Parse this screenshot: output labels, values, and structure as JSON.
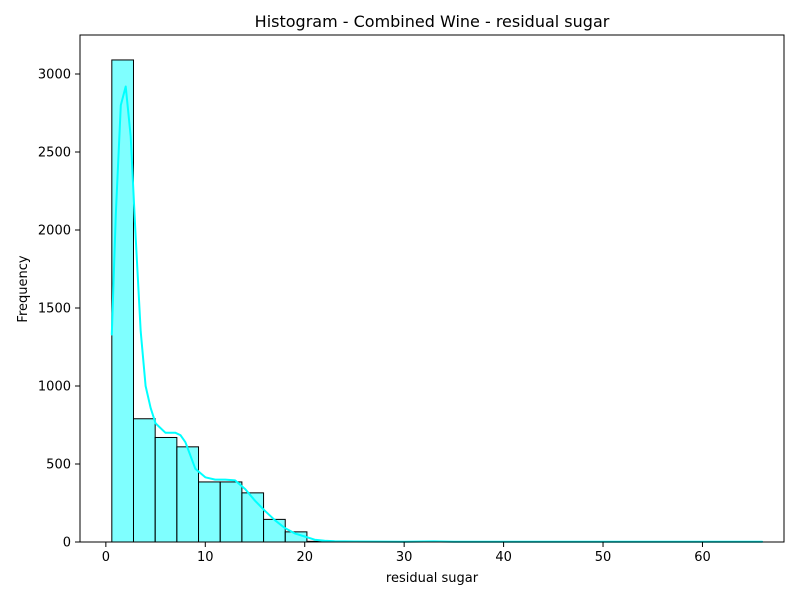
{
  "chart_data": {
    "type": "bar",
    "title": "Histogram - Combined Wine - residual sugar",
    "xlabel": "residual sugar",
    "ylabel": "Frequency",
    "xlim": [
      -2.6,
      68.2
    ],
    "ylim": [
      0,
      3250
    ],
    "xticks": [
      0,
      10,
      20,
      30,
      40,
      50,
      60
    ],
    "yticks": [
      0,
      500,
      1000,
      1500,
      2000,
      2500,
      3000
    ],
    "grid": false,
    "legend": "none",
    "bins": [
      {
        "x0": 0.6,
        "x1": 2.78,
        "count": 3090
      },
      {
        "x0": 2.78,
        "x1": 4.96,
        "count": 790
      },
      {
        "x0": 4.96,
        "x1": 7.14,
        "count": 670
      },
      {
        "x0": 7.14,
        "x1": 9.32,
        "count": 610
      },
      {
        "x0": 9.32,
        "x1": 11.5,
        "count": 385
      },
      {
        "x0": 11.5,
        "x1": 13.68,
        "count": 385
      },
      {
        "x0": 13.68,
        "x1": 15.86,
        "count": 315
      },
      {
        "x0": 15.86,
        "x1": 18.04,
        "count": 145
      },
      {
        "x0": 18.04,
        "x1": 20.22,
        "count": 65
      },
      {
        "x0": 20.22,
        "x1": 22.4,
        "count": 4
      },
      {
        "x0": 22.4,
        "x1": 24.58,
        "count": 1
      },
      {
        "x0": 24.58,
        "x1": 26.76,
        "count": 1
      },
      {
        "x0": 26.76,
        "x1": 28.94,
        "count": 0
      },
      {
        "x0": 28.94,
        "x1": 31.12,
        "count": 1
      },
      {
        "x0": 31.12,
        "x1": 33.3,
        "count": 1
      },
      {
        "x0": 33.3,
        "x1": 35.48,
        "count": 0
      },
      {
        "x0": 35.48,
        "x1": 37.66,
        "count": 0
      },
      {
        "x0": 37.66,
        "x1": 39.84,
        "count": 0
      },
      {
        "x0": 39.84,
        "x1": 42.02,
        "count": 0
      },
      {
        "x0": 42.02,
        "x1": 44.2,
        "count": 0
      },
      {
        "x0": 44.2,
        "x1": 46.38,
        "count": 0
      },
      {
        "x0": 46.38,
        "x1": 48.56,
        "count": 0
      },
      {
        "x0": 48.56,
        "x1": 50.74,
        "count": 0
      },
      {
        "x0": 50.74,
        "x1": 52.92,
        "count": 0
      },
      {
        "x0": 52.92,
        "x1": 55.1,
        "count": 0
      },
      {
        "x0": 55.1,
        "x1": 57.28,
        "count": 0
      },
      {
        "x0": 57.28,
        "x1": 59.46,
        "count": 0
      },
      {
        "x0": 59.46,
        "x1": 61.64,
        "count": 0
      },
      {
        "x0": 61.64,
        "x1": 63.82,
        "count": 0
      },
      {
        "x0": 63.82,
        "x1": 66.0,
        "count": 1
      }
    ],
    "kde": {
      "x": [
        0.6,
        1.0,
        1.5,
        2.0,
        2.5,
        3.0,
        3.5,
        4.0,
        4.5,
        5.0,
        6.0,
        7.0,
        7.5,
        8.0,
        9.0,
        10.0,
        11.0,
        12.0,
        13.0,
        14.0,
        15.0,
        16.0,
        17.0,
        18.0,
        19.0,
        20.0,
        21.0,
        22.0,
        23.0,
        25.0,
        30.0,
        33.0,
        35.0,
        40.0,
        50.0,
        60.0,
        66.0
      ],
      "y": [
        1330,
        2100,
        2800,
        2920,
        2600,
        1950,
        1350,
        1000,
        860,
        760,
        700,
        700,
        685,
        640,
        470,
        415,
        400,
        400,
        395,
        340,
        265,
        200,
        140,
        90,
        55,
        35,
        15,
        8,
        5,
        3,
        2,
        4,
        1,
        1,
        1,
        1,
        1
      ]
    },
    "colors": {
      "bar_fill": "#00FFFF",
      "bar_fill_opacity": 0.5,
      "bar_edge": "#000000",
      "kde_line": "#00FFFF",
      "axes": "#000000"
    }
  }
}
